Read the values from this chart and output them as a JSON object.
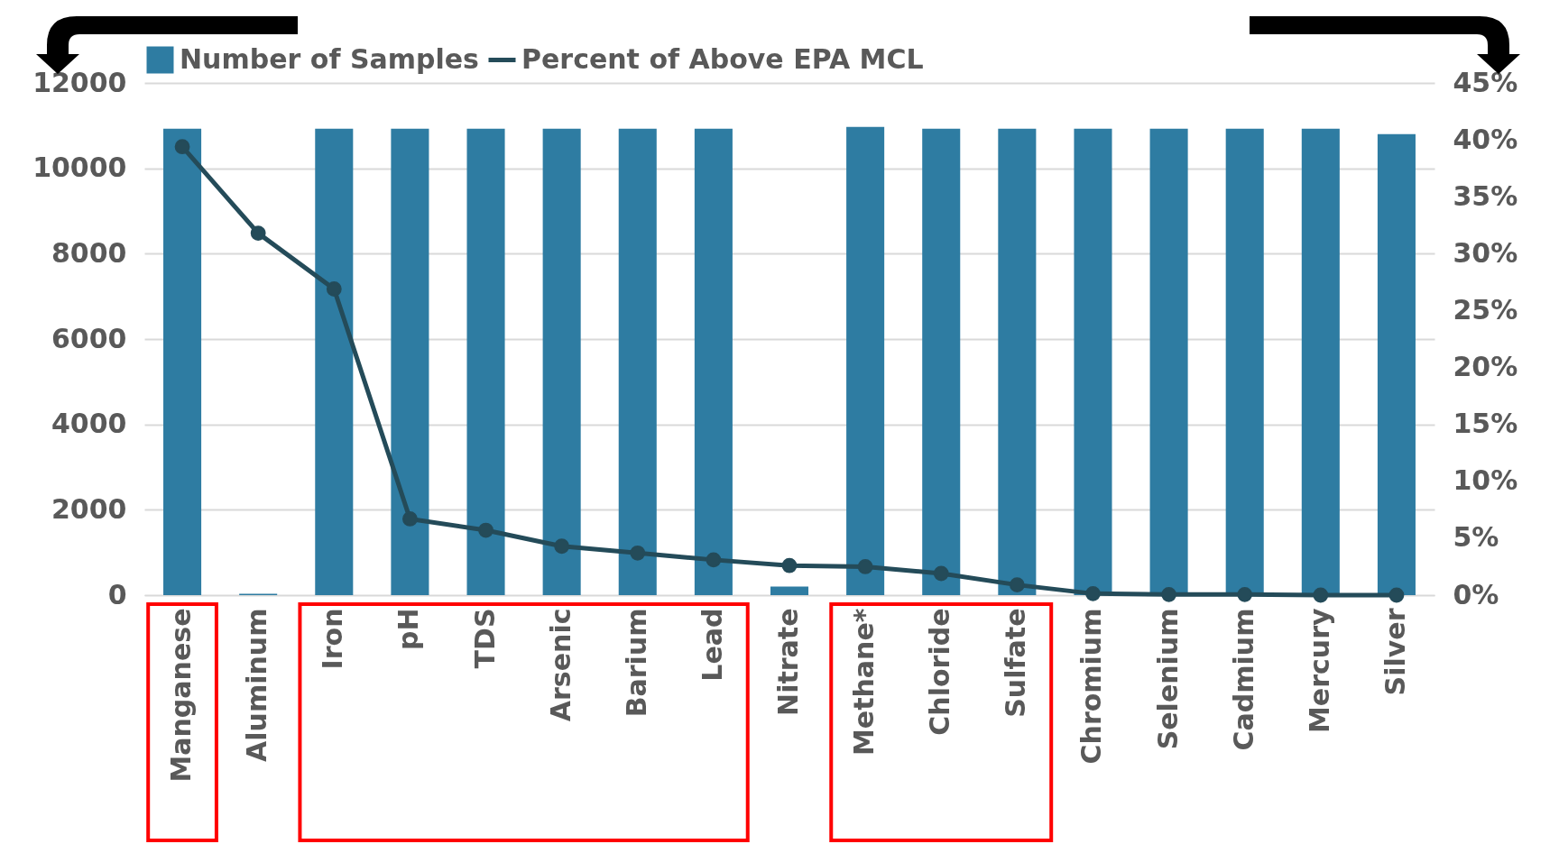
{
  "chart_data": {
    "type": "bar",
    "categories": [
      "Manganese",
      "Aluminum",
      "Iron",
      "pH",
      "TDS",
      "Arsenic",
      "Barium",
      "Lead",
      "Nitrate",
      "Methane*",
      "Chloride",
      "Sulfate",
      "Chromium",
      "Selenium",
      "Cadmium",
      "Mercury",
      "Silver"
    ],
    "series": [
      {
        "name": "Number of Samples",
        "color": "#2e7ca2",
        "values": [
          10930,
          30,
          10930,
          10930,
          10930,
          10930,
          10930,
          10930,
          200,
          10970,
          10930,
          10930,
          10930,
          10930,
          10930,
          10930,
          10800
        ]
      },
      {
        "name": "Percent of Above EPA MCL",
        "type": "line",
        "axis": "y2",
        "color": "#244b59",
        "values": [
          39.4,
          31.8,
          26.9,
          6.7,
          5.7,
          4.3,
          3.7,
          3.1,
          2.6,
          2.5,
          1.9,
          0.9,
          0.13,
          0.05,
          0.05,
          0,
          0
        ]
      }
    ],
    "ylim": [
      0,
      12000
    ],
    "yticks": [
      0,
      2000,
      4000,
      6000,
      8000,
      10000,
      12000
    ],
    "y2lim": [
      0,
      45
    ],
    "y2ticks": [
      {
        "value": 0,
        "label": "0%"
      },
      {
        "value": 5,
        "label": "5%"
      },
      {
        "value": 10,
        "label": "10%"
      },
      {
        "value": 15,
        "label": "15%"
      },
      {
        "value": 20,
        "label": "20%"
      },
      {
        "value": 25,
        "label": "25%"
      },
      {
        "value": 30,
        "label": "30%"
      },
      {
        "value": 35,
        "label": "35%"
      },
      {
        "value": 40,
        "label": "40%"
      },
      {
        "value": 45,
        "label": "45%"
      }
    ],
    "grid": "y",
    "legend": "top",
    "marker": "circle",
    "line_style": "solid"
  }
}
